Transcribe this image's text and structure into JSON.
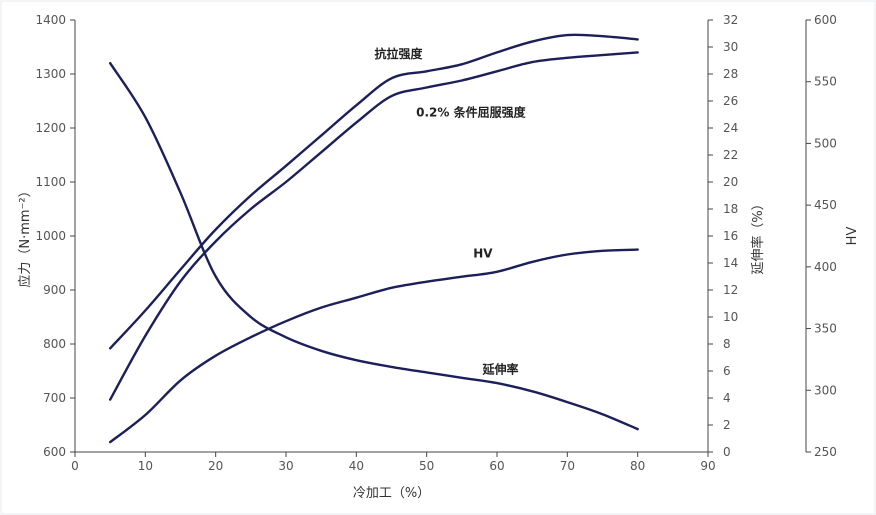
{
  "chart_data": {
    "type": "line",
    "xlabel": "冷加工（%）",
    "ylabel_left": "应力（N·mm⁻²）",
    "ylabel_right1": "延伸率（%）",
    "ylabel_right2": "HV",
    "xlim": [
      0,
      90
    ],
    "ylim_left": [
      600,
      1400
    ],
    "ylim_right1": [
      0,
      32
    ],
    "ylim_right2": [
      250,
      600
    ],
    "x_ticks": [
      "0",
      "10",
      "20",
      "30",
      "40",
      "50",
      "60",
      "70",
      "80",
      "90"
    ],
    "y_left_ticks": [
      "600",
      "700",
      "800",
      "900",
      "1000",
      "1100",
      "1200",
      "1300",
      "1400"
    ],
    "y_right1_ticks": [
      "0",
      "2",
      "4",
      "6",
      "8",
      "10",
      "12",
      "14",
      "16",
      "18",
      "20",
      "22",
      "24",
      "26",
      "28",
      "30",
      "32"
    ],
    "y_right2_ticks": [
      "250",
      "300",
      "350",
      "400",
      "450",
      "500",
      "550",
      "600"
    ],
    "grid": false,
    "colors": {
      "curve": "#1b1f5a",
      "background": "#ffffff",
      "frame": "#e6e8ec"
    },
    "series": [
      {
        "name": "抗拉强度",
        "axis": "left",
        "x": [
          5,
          10,
          15,
          20,
          25,
          30,
          35,
          40,
          45,
          50,
          55,
          60,
          65,
          70,
          75,
          80
        ],
        "y": [
          792,
          862,
          938,
          1012,
          1075,
          1130,
          1186,
          1242,
          1292,
          1305,
          1318,
          1340,
          1360,
          1372,
          1370,
          1364
        ]
      },
      {
        "name": "0.2% 条件屈服强度",
        "axis": "left",
        "x": [
          5,
          10,
          15,
          20,
          25,
          30,
          35,
          40,
          45,
          50,
          55,
          60,
          65,
          70,
          75,
          80
        ],
        "y": [
          697,
          815,
          916,
          990,
          1050,
          1100,
          1155,
          1210,
          1259,
          1275,
          1288,
          1305,
          1322,
          1330,
          1335,
          1340
        ]
      },
      {
        "name": "HV",
        "axis": "right2",
        "x": [
          5,
          10,
          15,
          20,
          25,
          30,
          35,
          40,
          45,
          50,
          55,
          60,
          65,
          70,
          75,
          80
        ],
        "y": [
          258,
          280,
          308,
          328,
          343,
          356,
          367,
          375,
          383,
          388,
          392,
          396,
          404,
          410,
          413,
          414
        ]
      },
      {
        "name": "延伸率",
        "axis": "right1",
        "x": [
          5,
          10,
          15,
          20,
          25,
          30,
          35,
          40,
          45,
          50,
          55,
          60,
          65,
          70,
          75,
          80
        ],
        "y": [
          28.8,
          24.8,
          19.2,
          13.0,
          10.0,
          8.5,
          7.5,
          6.8,
          6.3,
          5.9,
          5.5,
          5.1,
          4.5,
          3.7,
          2.8,
          1.7
        ]
      }
    ],
    "annotations": [
      {
        "text": "抗拉强度",
        "series": "抗拉强度"
      },
      {
        "text": "0.2% 条件屈服强度",
        "series": "0.2% 条件屈服强度"
      },
      {
        "text": "HV",
        "series": "HV"
      },
      {
        "text": "延伸率",
        "series": "延伸率"
      }
    ]
  }
}
